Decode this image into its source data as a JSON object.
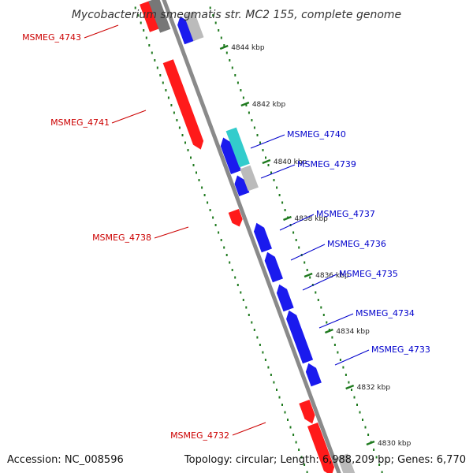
{
  "title": "Mycobacterium smegmatis str. MC2 155, complete genome",
  "footer": {
    "accession": "Accession: NC_008596",
    "summary": "Topology: circular; Length: 6,988,209 bp; Genes: 6,770"
  },
  "colors": {
    "backbone": "#8a8a8a",
    "tick": "#1f7a1f",
    "forward_gene": "#ff1a1a",
    "reverse_gene": "#1a1aee",
    "rna_gene": "#33cccc",
    "other_gene": "#bbbbbb",
    "forward_label": "#cc0000",
    "reverse_label": "#0000cc"
  },
  "ticks": [
    "4844 kbp",
    "4842 kbp",
    "4840 kbp",
    "4838 kbp",
    "4836 kbp",
    "4834 kbp",
    "4832 kbp",
    "4830 kbp"
  ],
  "genes": [
    {
      "label": "MSMEG_4743",
      "strand": "forward"
    },
    {
      "label": "MSMEG_4741",
      "strand": "forward"
    },
    {
      "label": "MSMEG_4740",
      "strand": "reverse"
    },
    {
      "label": "MSMEG_4739",
      "strand": "reverse"
    },
    {
      "label": "MSMEG_4738",
      "strand": "forward"
    },
    {
      "label": "MSMEG_4737",
      "strand": "reverse"
    },
    {
      "label": "MSMEG_4736",
      "strand": "reverse"
    },
    {
      "label": "MSMEG_4735",
      "strand": "reverse"
    },
    {
      "label": "MSMEG_4734",
      "strand": "reverse"
    },
    {
      "label": "MSMEG_4733",
      "strand": "reverse"
    },
    {
      "label": "MSMEG_4732",
      "strand": "forward"
    }
  ]
}
